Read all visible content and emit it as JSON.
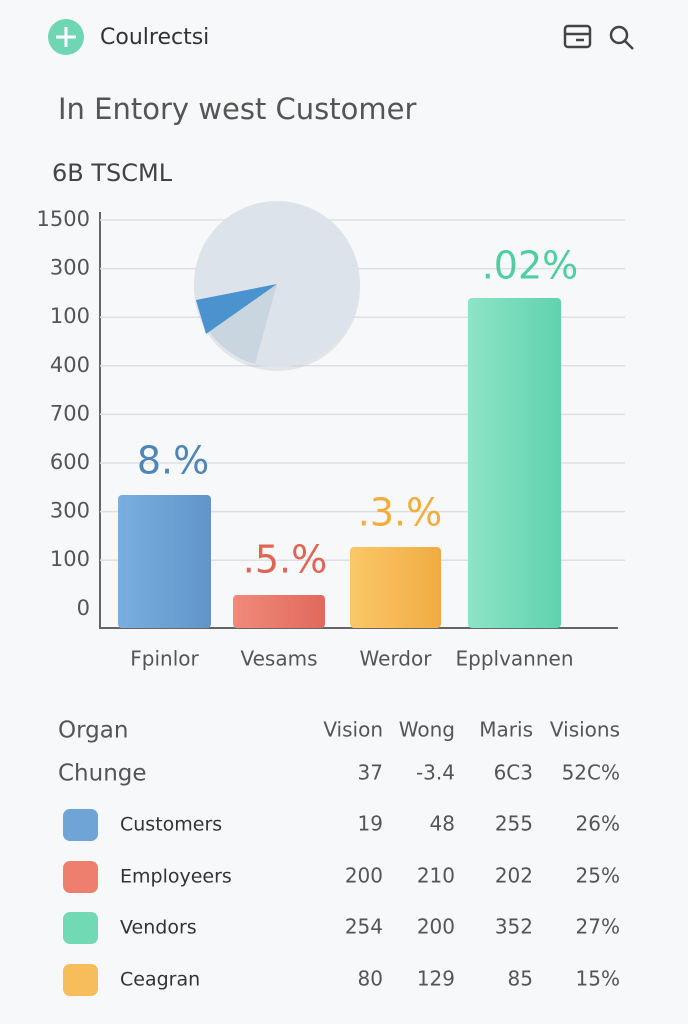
{
  "header": {
    "title": "Coulrectsi"
  },
  "heading": "In Entory west Customer",
  "subheading": "6B TSCML",
  "chart": {
    "y_labels": [
      "1500",
      "300",
      "100",
      "400",
      "700",
      "600",
      "300",
      "100",
      "0"
    ],
    "bars": [
      {
        "label": "Fpinlor",
        "value_label": "8.%"
      },
      {
        "label": "Vesams",
        "value_label": ".5.%"
      },
      {
        "label": "Werdor",
        "value_label": ".3.%"
      },
      {
        "label": "Epplvannen",
        "value_label": ".02%"
      }
    ]
  },
  "table": {
    "columns": [
      "Organ",
      "Vision",
      "Wong",
      "Maris",
      "Visions"
    ],
    "rows": [
      [
        "Chunge",
        37,
        "-3.4",
        "6C3",
        "52C%"
      ],
      [
        "Customers",
        19,
        48,
        255,
        "26%"
      ],
      [
        "Employeers",
        200,
        210,
        202,
        "25%"
      ],
      [
        "Vendors",
        254,
        200,
        352,
        "27%"
      ],
      [
        "Ceagran",
        80,
        129,
        85,
        "15%"
      ]
    ]
  }
}
